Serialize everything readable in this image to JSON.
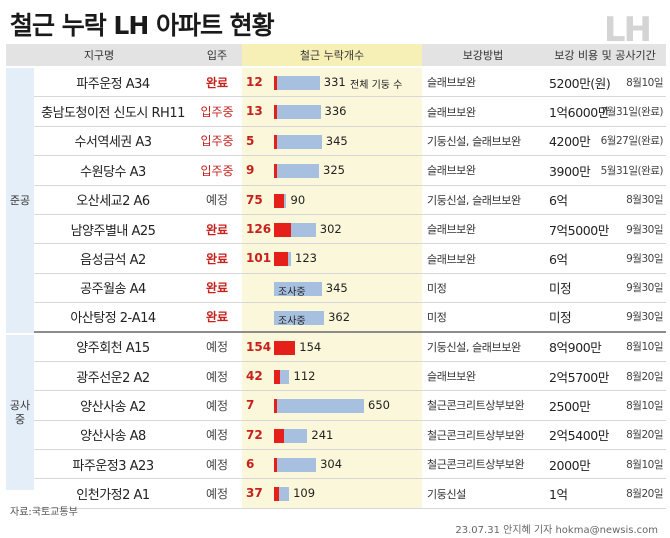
{
  "title": "철근 누락 LH 아파트 현황",
  "logo": "LH",
  "headers": {
    "district": "지구명",
    "move_in": "입주",
    "rebar": "철근 누락개수",
    "method": "보강방법",
    "cost_period": "보강 비용 및 공사기간"
  },
  "groups": {
    "completed": "준공",
    "under_construction": "공사\n중"
  },
  "notes": {
    "total_pillars": "전체 기둥 수"
  },
  "rows": [
    {
      "name": "파주운정 A34",
      "status": "완료",
      "missing": "12",
      "total": "331",
      "method": "슬래브보완",
      "cost": "5200만(원)",
      "period": "8월10일"
    },
    {
      "name": "충남도청이전 신도시 RH11",
      "status": "입주중",
      "missing": "13",
      "total": "336",
      "method": "슬래브보완",
      "cost": "1억6000만",
      "period": "7월31일(완료)"
    },
    {
      "name": "수서역세권 A3",
      "status": "입주중",
      "missing": "5",
      "total": "345",
      "method": "기둥신설, 슬래브보완",
      "cost": "4200만",
      "period": "6월27일(완료)"
    },
    {
      "name": "수원당수 A3",
      "status": "입주중",
      "missing": "9",
      "total": "325",
      "method": "슬래브보완",
      "cost": "3900만",
      "period": "5월31일(완료)"
    },
    {
      "name": "오산세교2 A6",
      "status": "예정",
      "missing": "75",
      "total": "90",
      "method": "기둥신설, 슬래브보완",
      "cost": "6억",
      "period": "8월30일"
    },
    {
      "name": "남양주별내 A25",
      "status": "완료",
      "missing": "126",
      "total": "302",
      "method": "슬래브보완",
      "cost": "7억5000만",
      "period": "9월30일"
    },
    {
      "name": "음성금석 A2",
      "status": "완료",
      "missing": "101",
      "total": "123",
      "method": "슬래브보완",
      "cost": "6억",
      "period": "9월30일"
    },
    {
      "name": "공주월송 A4",
      "status": "완료",
      "missing": "조사중",
      "total": "345",
      "method": "미정",
      "cost": "미정",
      "period": "9월30일"
    },
    {
      "name": "아산탕정 2-A14",
      "status": "완료",
      "missing": "조사중",
      "total": "362",
      "method": "미정",
      "cost": "미정",
      "period": "9월30일"
    },
    {
      "name": "양주회천 A15",
      "status": "예정",
      "missing": "154",
      "total": "154",
      "method": "기둥신설, 슬래브보완",
      "cost": "8억900만",
      "period": "8월10일"
    },
    {
      "name": "광주선운2 A2",
      "status": "예정",
      "missing": "42",
      "total": "112",
      "method": "슬래브보완",
      "cost": "2억5700만",
      "period": "8월20일"
    },
    {
      "name": "양산사송 A2",
      "status": "예정",
      "missing": "7",
      "total": "650",
      "method": "철근콘크리트상부보완",
      "cost": "2500만",
      "period": "8월10일"
    },
    {
      "name": "양산사송 A8",
      "status": "예정",
      "missing": "72",
      "total": "241",
      "method": "철근콘크리트상부보완",
      "cost": "2억5400만",
      "period": "8월20일"
    },
    {
      "name": "파주운정3 A23",
      "status": "예정",
      "missing": "6",
      "total": "304",
      "method": "철근콘크리트상부보완",
      "cost": "2000만",
      "period": "8월10일"
    },
    {
      "name": "인천가정2 A1",
      "status": "예정",
      "missing": "37",
      "total": "109",
      "method": "기둥신설",
      "cost": "1억",
      "period": "8월20일"
    }
  ],
  "source": "자료:국토교통부",
  "credit": "23.07.31 안지혜 기자 hokma@newsis.com",
  "colors": {
    "missing_bar": "#e51f1a",
    "total_bar": "#a8c0e0",
    "status_red": "#c7211d",
    "header_bg": "#e3e3e3",
    "rebar_col_bg": "#fbf7da",
    "group_bg": "#e4eef8"
  }
}
